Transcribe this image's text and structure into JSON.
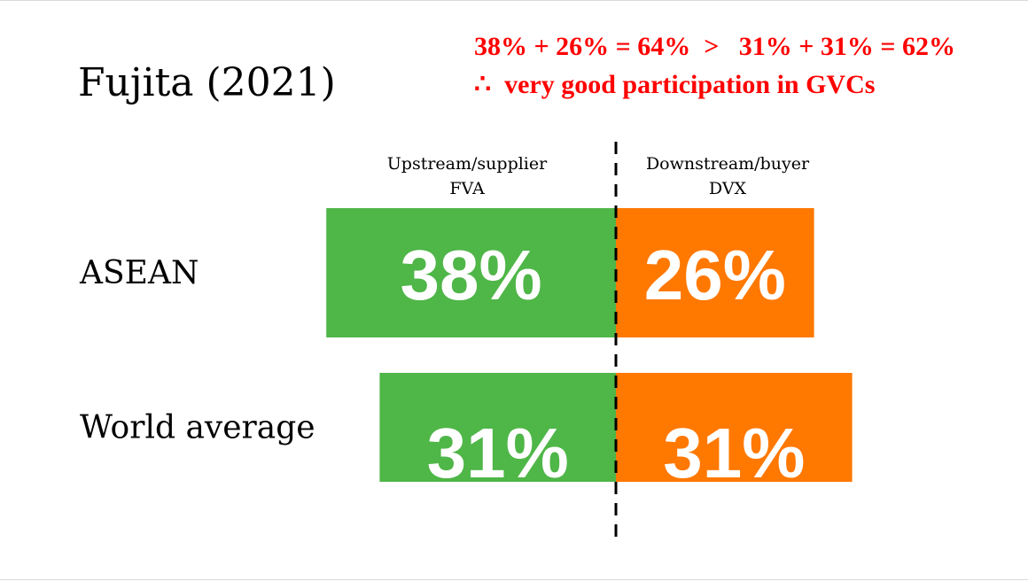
{
  "title": "Fujita (2021)",
  "annotations": {
    "line1": "38% + 26% = 64%  >   31% + 31% = 62%",
    "line2": "∴  very good participation in GVCs"
  },
  "colors": {
    "upstream": "#4fb648",
    "downstream": "#ff7800",
    "annotation": "#ff0000",
    "divider": "#000000"
  },
  "chart_data": {
    "type": "bar",
    "orientation": "horizontal-diverging",
    "column_headers": [
      {
        "line1": "Upstream/supplier",
        "line2": "FVA"
      },
      {
        "line1": "Downstream/buyer",
        "line2": "DVX"
      }
    ],
    "categories": [
      "ASEAN",
      "World average"
    ],
    "series": [
      {
        "name": "Upstream/supplier FVA",
        "values": [
          38,
          31
        ],
        "labels": [
          "38%",
          "31%"
        ]
      },
      {
        "name": "Downstream/buyer DVX",
        "values": [
          26,
          31
        ],
        "labels": [
          "26%",
          "31%"
        ]
      }
    ],
    "unit": "%",
    "grid": false,
    "legend": "none"
  }
}
